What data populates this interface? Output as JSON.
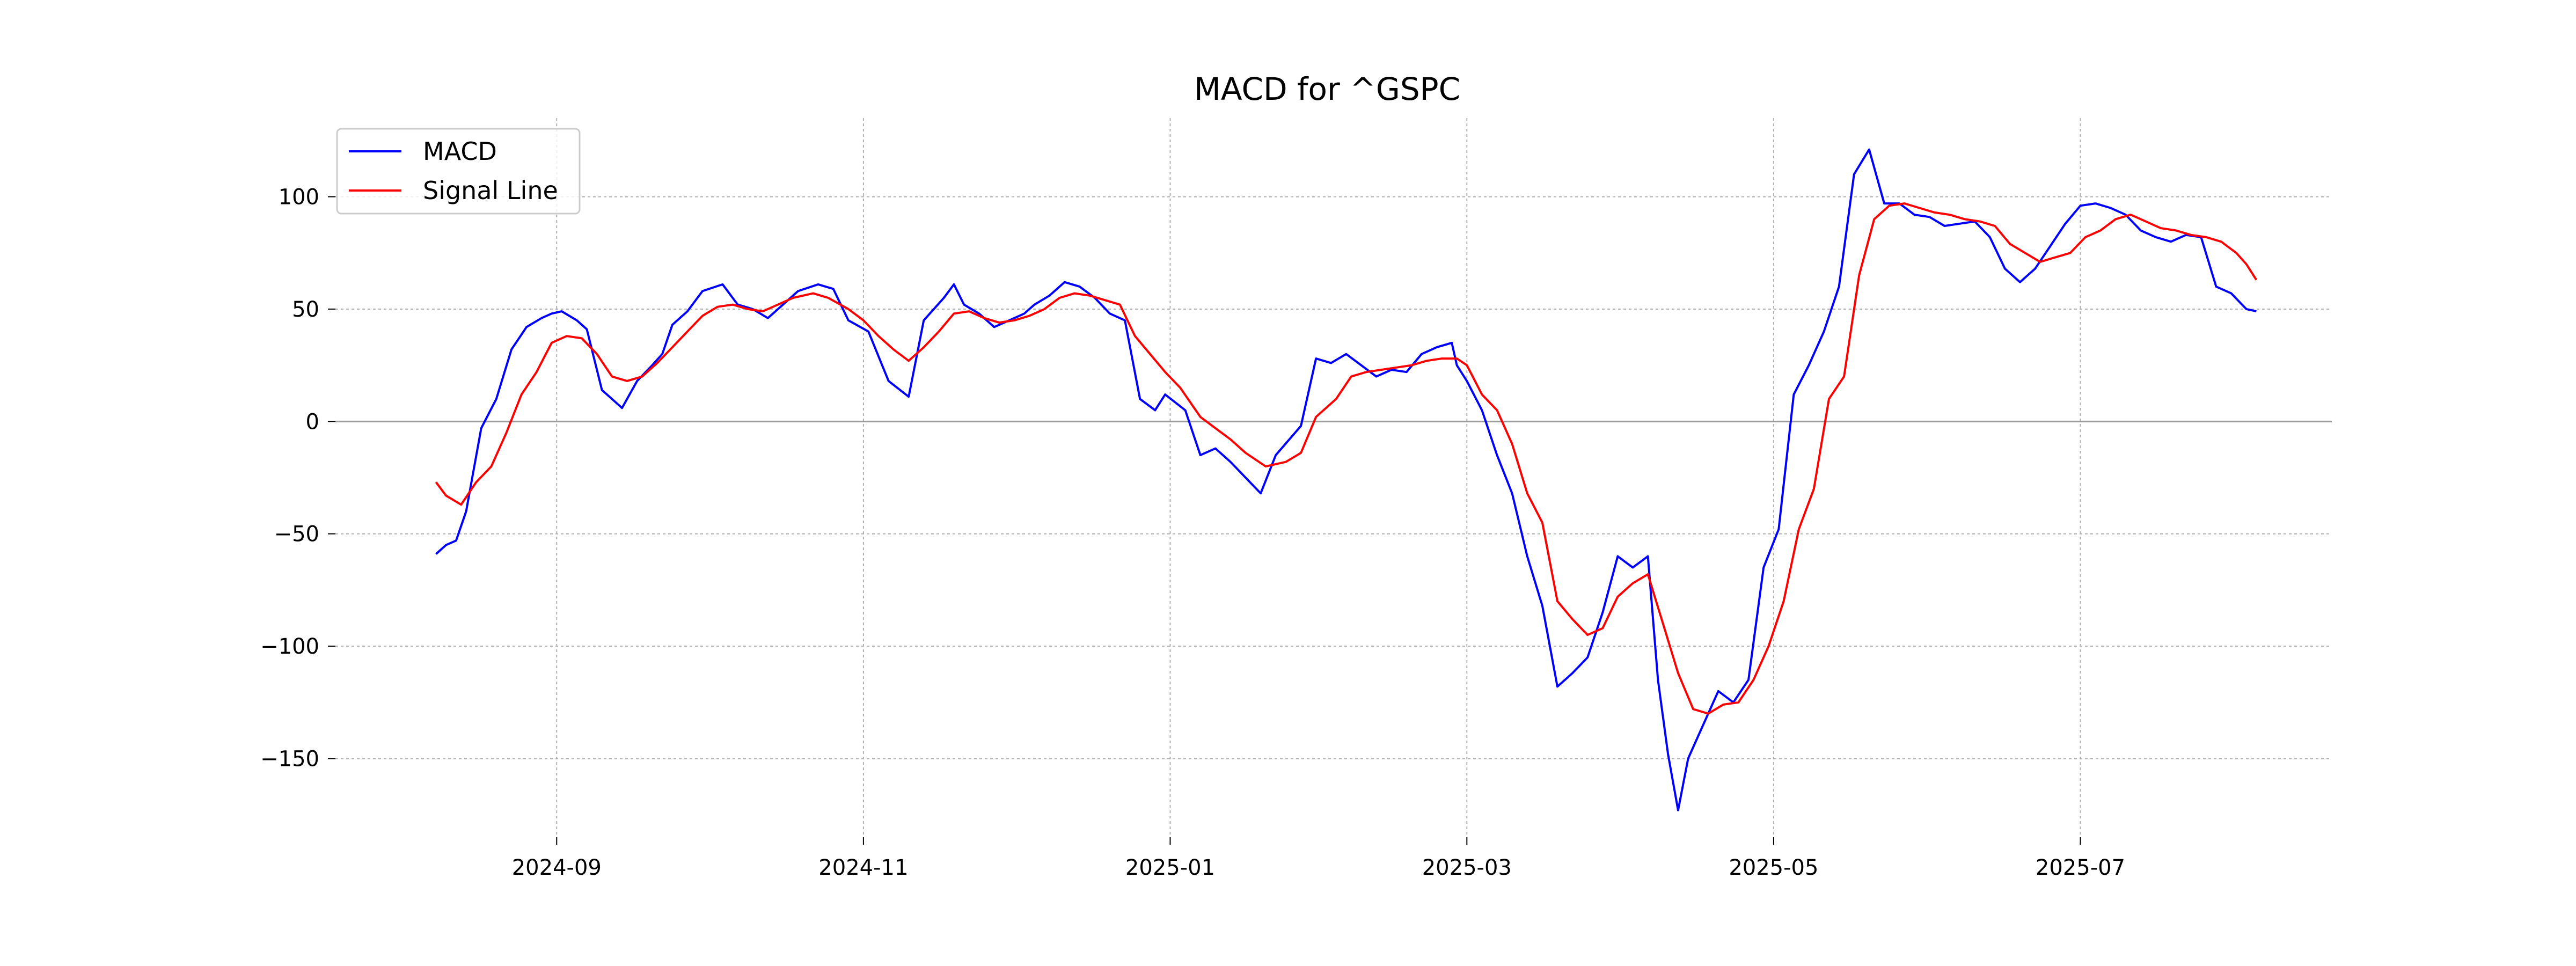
{
  "chart_data": {
    "type": "line",
    "title": "MACD for ^GSPC",
    "xlabel": "",
    "ylabel": "",
    "grid": true,
    "legend_placement": "top-left",
    "xlim": [
      "2024-07-19",
      "2025-08-20"
    ],
    "ylim": [
      -185,
      135
    ],
    "x_ticks": [
      {
        "date": "2024-09-01",
        "label": "2024-09"
      },
      {
        "date": "2024-11-01",
        "label": "2024-11"
      },
      {
        "date": "2025-01-01",
        "label": "2025-01"
      },
      {
        "date": "2025-03-01",
        "label": "2025-03"
      },
      {
        "date": "2025-05-01",
        "label": "2025-05"
      },
      {
        "date": "2025-07-01",
        "label": "2025-07"
      }
    ],
    "y_ticks": [
      {
        "value": 100,
        "label": "100"
      },
      {
        "value": 50,
        "label": "50"
      },
      {
        "value": 0,
        "label": "0"
      },
      {
        "value": -50,
        "label": "−50"
      },
      {
        "value": -100,
        "label": "−100"
      },
      {
        "value": -150,
        "label": "−150"
      }
    ],
    "zero_line": 0,
    "series": [
      {
        "name": "MACD",
        "color": "#0000ff",
        "points": [
          [
            "2024-08-08",
            -59
          ],
          [
            "2024-08-10",
            -55
          ],
          [
            "2024-08-12",
            -53
          ],
          [
            "2024-08-14",
            -40
          ],
          [
            "2024-08-17",
            -3
          ],
          [
            "2024-08-20",
            10
          ],
          [
            "2024-08-23",
            32
          ],
          [
            "2024-08-26",
            42
          ],
          [
            "2024-08-29",
            46
          ],
          [
            "2024-08-31",
            48
          ],
          [
            "2024-09-02",
            49
          ],
          [
            "2024-09-05",
            45
          ],
          [
            "2024-09-07",
            41
          ],
          [
            "2024-09-10",
            14
          ],
          [
            "2024-09-14",
            6
          ],
          [
            "2024-09-17",
            18
          ],
          [
            "2024-09-20",
            25
          ],
          [
            "2024-09-22",
            30
          ],
          [
            "2024-09-24",
            43
          ],
          [
            "2024-09-27",
            49
          ],
          [
            "2024-09-30",
            58
          ],
          [
            "2024-10-04",
            61
          ],
          [
            "2024-10-07",
            52
          ],
          [
            "2024-10-10",
            50
          ],
          [
            "2024-10-13",
            46
          ],
          [
            "2024-10-16",
            52
          ],
          [
            "2024-10-19",
            58
          ],
          [
            "2024-10-23",
            61
          ],
          [
            "2024-10-26",
            59
          ],
          [
            "2024-10-29",
            45
          ],
          [
            "2024-11-02",
            40
          ],
          [
            "2024-11-06",
            18
          ],
          [
            "2024-11-10",
            11
          ],
          [
            "2024-11-13",
            45
          ],
          [
            "2024-11-17",
            55
          ],
          [
            "2024-11-19",
            61
          ],
          [
            "2024-11-21",
            52
          ],
          [
            "2024-11-24",
            48
          ],
          [
            "2024-11-27",
            42
          ],
          [
            "2024-11-30",
            45
          ],
          [
            "2024-12-03",
            48
          ],
          [
            "2024-12-05",
            52
          ],
          [
            "2024-12-08",
            56
          ],
          [
            "2024-12-11",
            62
          ],
          [
            "2024-12-14",
            60
          ],
          [
            "2024-12-17",
            55
          ],
          [
            "2024-12-20",
            48
          ],
          [
            "2024-12-23",
            45
          ],
          [
            "2024-12-26",
            10
          ],
          [
            "2024-12-29",
            5
          ],
          [
            "2024-12-31",
            12
          ],
          [
            "2025-01-04",
            5
          ],
          [
            "2025-01-07",
            -15
          ],
          [
            "2025-01-10",
            -12
          ],
          [
            "2025-01-13",
            -18
          ],
          [
            "2025-01-16",
            -25
          ],
          [
            "2025-01-19",
            -32
          ],
          [
            "2025-01-22",
            -15
          ],
          [
            "2025-01-27",
            -2
          ],
          [
            "2025-01-30",
            28
          ],
          [
            "2025-02-02",
            26
          ],
          [
            "2025-02-05",
            30
          ],
          [
            "2025-02-08",
            25
          ],
          [
            "2025-02-11",
            20
          ],
          [
            "2025-02-14",
            23
          ],
          [
            "2025-02-17",
            22
          ],
          [
            "2025-02-20",
            30
          ],
          [
            "2025-02-23",
            33
          ],
          [
            "2025-02-26",
            35
          ],
          [
            "2025-02-27",
            25
          ],
          [
            "2025-03-01",
            18
          ],
          [
            "2025-03-04",
            5
          ],
          [
            "2025-03-07",
            -15
          ],
          [
            "2025-03-10",
            -32
          ],
          [
            "2025-03-13",
            -60
          ],
          [
            "2025-03-16",
            -82
          ],
          [
            "2025-03-19",
            -118
          ],
          [
            "2025-03-22",
            -112
          ],
          [
            "2025-03-25",
            -105
          ],
          [
            "2025-03-28",
            -85
          ],
          [
            "2025-03-31",
            -60
          ],
          [
            "2025-04-03",
            -65
          ],
          [
            "2025-04-06",
            -60
          ],
          [
            "2025-04-08",
            -115
          ],
          [
            "2025-04-10",
            -148
          ],
          [
            "2025-04-12",
            -173
          ],
          [
            "2025-04-14",
            -150
          ],
          [
            "2025-04-17",
            -135
          ],
          [
            "2025-04-20",
            -120
          ],
          [
            "2025-04-23",
            -125
          ],
          [
            "2025-04-26",
            -115
          ],
          [
            "2025-04-29",
            -65
          ],
          [
            "2025-05-02",
            -48
          ],
          [
            "2025-05-05",
            12
          ],
          [
            "2025-05-08",
            25
          ],
          [
            "2025-05-11",
            40
          ],
          [
            "2025-05-14",
            60
          ],
          [
            "2025-05-17",
            110
          ],
          [
            "2025-05-20",
            121
          ],
          [
            "2025-05-23",
            97
          ],
          [
            "2025-05-26",
            97
          ],
          [
            "2025-05-29",
            92
          ],
          [
            "2025-06-01",
            91
          ],
          [
            "2025-06-04",
            87
          ],
          [
            "2025-06-07",
            88
          ],
          [
            "2025-06-10",
            89
          ],
          [
            "2025-06-13",
            82
          ],
          [
            "2025-06-16",
            68
          ],
          [
            "2025-06-19",
            62
          ],
          [
            "2025-06-22",
            68
          ],
          [
            "2025-06-25",
            78
          ],
          [
            "2025-06-28",
            88
          ],
          [
            "2025-07-01",
            96
          ],
          [
            "2025-07-04",
            97
          ],
          [
            "2025-07-07",
            95
          ],
          [
            "2025-07-10",
            92
          ],
          [
            "2025-07-13",
            85
          ],
          [
            "2025-07-16",
            82
          ],
          [
            "2025-07-19",
            80
          ],
          [
            "2025-07-22",
            83
          ],
          [
            "2025-07-25",
            82
          ],
          [
            "2025-07-28",
            60
          ],
          [
            "2025-07-31",
            57
          ],
          [
            "2025-08-03",
            50
          ],
          [
            "2025-08-05",
            49
          ]
        ]
      },
      {
        "name": "Signal Line",
        "color": "#ff0000",
        "points": [
          [
            "2024-08-08",
            -27
          ],
          [
            "2024-08-10",
            -33
          ],
          [
            "2024-08-13",
            -37
          ],
          [
            "2024-08-16",
            -27
          ],
          [
            "2024-08-19",
            -20
          ],
          [
            "2024-08-22",
            -5
          ],
          [
            "2024-08-25",
            12
          ],
          [
            "2024-08-28",
            22
          ],
          [
            "2024-08-31",
            35
          ],
          [
            "2024-09-03",
            38
          ],
          [
            "2024-09-06",
            37
          ],
          [
            "2024-09-09",
            30
          ],
          [
            "2024-09-12",
            20
          ],
          [
            "2024-09-15",
            18
          ],
          [
            "2024-09-18",
            20
          ],
          [
            "2024-09-21",
            26
          ],
          [
            "2024-09-24",
            33
          ],
          [
            "2024-09-27",
            40
          ],
          [
            "2024-09-30",
            47
          ],
          [
            "2024-10-03",
            51
          ],
          [
            "2024-10-06",
            52
          ],
          [
            "2024-10-09",
            50
          ],
          [
            "2024-10-12",
            49
          ],
          [
            "2024-10-15",
            52
          ],
          [
            "2024-10-18",
            55
          ],
          [
            "2024-10-22",
            57
          ],
          [
            "2024-10-25",
            55
          ],
          [
            "2024-10-29",
            50
          ],
          [
            "2024-11-01",
            45
          ],
          [
            "2024-11-04",
            38
          ],
          [
            "2024-11-07",
            32
          ],
          [
            "2024-11-10",
            27
          ],
          [
            "2024-11-13",
            33
          ],
          [
            "2024-11-16",
            40
          ],
          [
            "2024-11-19",
            48
          ],
          [
            "2024-11-22",
            49
          ],
          [
            "2024-11-25",
            46
          ],
          [
            "2024-11-28",
            44
          ],
          [
            "2024-12-01",
            45
          ],
          [
            "2024-12-04",
            47
          ],
          [
            "2024-12-07",
            50
          ],
          [
            "2024-12-10",
            55
          ],
          [
            "2024-12-13",
            57
          ],
          [
            "2024-12-16",
            56
          ],
          [
            "2024-12-19",
            54
          ],
          [
            "2024-12-22",
            52
          ],
          [
            "2024-12-25",
            38
          ],
          [
            "2024-12-28",
            30
          ],
          [
            "2024-12-31",
            22
          ],
          [
            "2025-01-03",
            15
          ],
          [
            "2025-01-07",
            2
          ],
          [
            "2025-01-10",
            -3
          ],
          [
            "2025-01-13",
            -8
          ],
          [
            "2025-01-16",
            -14
          ],
          [
            "2025-01-20",
            -20
          ],
          [
            "2025-01-24",
            -18
          ],
          [
            "2025-01-27",
            -14
          ],
          [
            "2025-01-30",
            2
          ],
          [
            "2025-02-03",
            10
          ],
          [
            "2025-02-06",
            20
          ],
          [
            "2025-02-09",
            22
          ],
          [
            "2025-02-12",
            23
          ],
          [
            "2025-02-15",
            24
          ],
          [
            "2025-02-18",
            25
          ],
          [
            "2025-02-21",
            27
          ],
          [
            "2025-02-24",
            28
          ],
          [
            "2025-02-27",
            28
          ],
          [
            "2025-03-01",
            25
          ],
          [
            "2025-03-04",
            12
          ],
          [
            "2025-03-07",
            5
          ],
          [
            "2025-03-10",
            -10
          ],
          [
            "2025-03-13",
            -32
          ],
          [
            "2025-03-16",
            -45
          ],
          [
            "2025-03-19",
            -80
          ],
          [
            "2025-03-22",
            -88
          ],
          [
            "2025-03-25",
            -95
          ],
          [
            "2025-03-28",
            -92
          ],
          [
            "2025-03-31",
            -78
          ],
          [
            "2025-04-03",
            -72
          ],
          [
            "2025-04-06",
            -68
          ],
          [
            "2025-04-09",
            -90
          ],
          [
            "2025-04-12",
            -112
          ],
          [
            "2025-04-15",
            -128
          ],
          [
            "2025-04-18",
            -130
          ],
          [
            "2025-04-21",
            -126
          ],
          [
            "2025-04-24",
            -125
          ],
          [
            "2025-04-27",
            -115
          ],
          [
            "2025-04-30",
            -100
          ],
          [
            "2025-05-03",
            -80
          ],
          [
            "2025-05-06",
            -48
          ],
          [
            "2025-05-09",
            -30
          ],
          [
            "2025-05-12",
            10
          ],
          [
            "2025-05-15",
            20
          ],
          [
            "2025-05-18",
            65
          ],
          [
            "2025-05-21",
            90
          ],
          [
            "2025-05-24",
            96
          ],
          [
            "2025-05-27",
            97
          ],
          [
            "2025-05-30",
            95
          ],
          [
            "2025-06-02",
            93
          ],
          [
            "2025-06-05",
            92
          ],
          [
            "2025-06-08",
            90
          ],
          [
            "2025-06-11",
            89
          ],
          [
            "2025-06-14",
            87
          ],
          [
            "2025-06-17",
            79
          ],
          [
            "2025-06-20",
            75
          ],
          [
            "2025-06-23",
            71
          ],
          [
            "2025-06-26",
            73
          ],
          [
            "2025-06-29",
            75
          ],
          [
            "2025-07-02",
            82
          ],
          [
            "2025-07-05",
            85
          ],
          [
            "2025-07-08",
            90
          ],
          [
            "2025-07-11",
            92
          ],
          [
            "2025-07-14",
            89
          ],
          [
            "2025-07-17",
            86
          ],
          [
            "2025-07-20",
            85
          ],
          [
            "2025-07-23",
            83
          ],
          [
            "2025-07-26",
            82
          ],
          [
            "2025-07-29",
            80
          ],
          [
            "2025-08-01",
            75
          ],
          [
            "2025-08-03",
            70
          ],
          [
            "2025-08-05",
            63
          ]
        ]
      }
    ]
  }
}
